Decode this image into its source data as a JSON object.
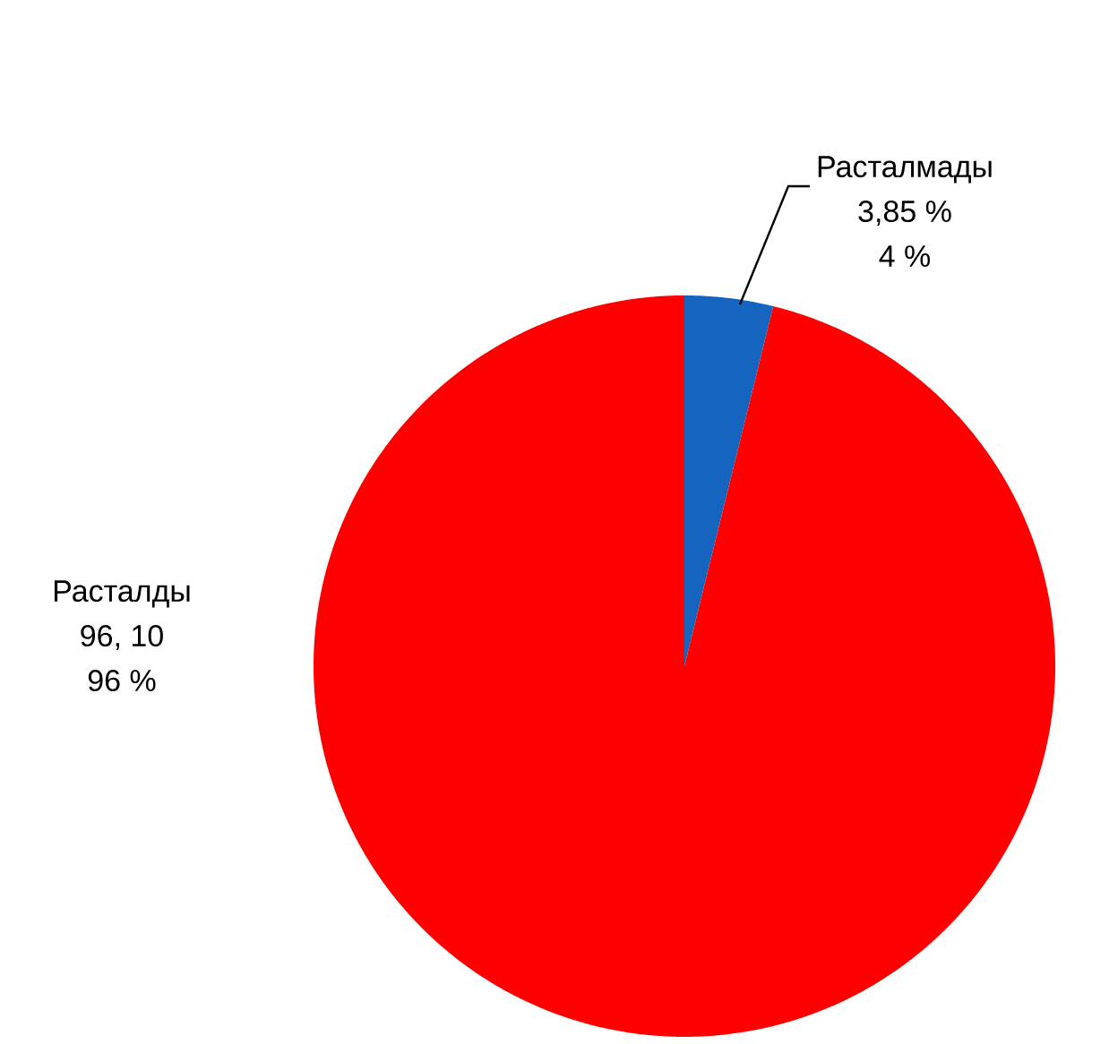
{
  "chart_data": {
    "type": "pie",
    "categories": [
      "Расталмады",
      "Расталды"
    ],
    "values": [
      3.85,
      96.1
    ],
    "colors": [
      "#1565c0",
      "#ff0000"
    ],
    "value_labels": [
      "3,85 %",
      "96, 10"
    ],
    "annotations": [
      "4 %",
      "96 %"
    ]
  }
}
